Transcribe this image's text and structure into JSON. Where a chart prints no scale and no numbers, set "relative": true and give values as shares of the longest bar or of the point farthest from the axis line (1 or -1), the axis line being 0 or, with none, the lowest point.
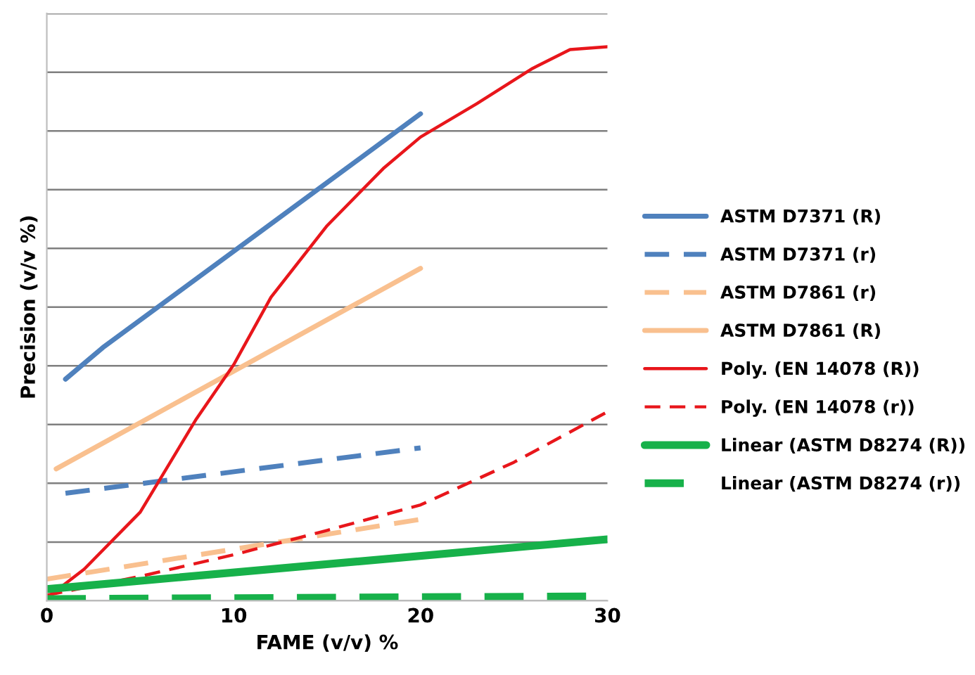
{
  "chart_data": {
    "type": "line",
    "relative": true,
    "xlabel": "FAME (v/v) %",
    "ylabel": "Precision (v/v %)",
    "xlim": [
      0,
      30
    ],
    "xticks": [
      0,
      10,
      20,
      30
    ],
    "grid": "y",
    "legend": "right",
    "tick_labels": "x",
    "series": [
      {
        "name": "ASTM D7371 (R)",
        "color": "#4f81bd",
        "line_style": "solid",
        "x": [
          1,
          3,
          20
        ],
        "values": [
          0.4,
          0.457,
          0.879
        ]
      },
      {
        "name": "ASTM D7371 (r)",
        "color": "#4f81bd",
        "line_style": "dashed",
        "x": [
          1,
          20
        ],
        "values": [
          0.194,
          0.276
        ]
      },
      {
        "name": "ASTM D7861 (r)",
        "color": "#f9c08f",
        "line_style": "dashed",
        "x": [
          0,
          20
        ],
        "values": [
          0.039,
          0.147
        ]
      },
      {
        "name": "ASTM D7861 (R)",
        "color": "#f9c08f",
        "line_style": "solid",
        "x": [
          0.5,
          20
        ],
        "values": [
          0.238,
          0.6
        ]
      },
      {
        "name": "Poly. (EN 14078 (R))",
        "color": "#e8161b",
        "line_style": "solid",
        "x": [
          0,
          2,
          5,
          8,
          10,
          12,
          15,
          18,
          20,
          23,
          26,
          28,
          30
        ],
        "values": [
          0.005,
          0.057,
          0.16,
          0.328,
          0.426,
          0.548,
          0.677,
          0.78,
          0.837,
          0.897,
          0.961,
          0.995,
          1
        ]
      },
      {
        "name": "Poly. (EN 14078 (r))",
        "color": "#e8161b",
        "line_style": "dashed",
        "x": [
          0,
          5,
          10,
          15,
          20,
          25,
          30
        ],
        "values": [
          0.01,
          0.044,
          0.083,
          0.127,
          0.173,
          0.25,
          0.341
        ]
      },
      {
        "name": "Linear (ASTM D8274 (R))",
        "color": "#17b14a",
        "line_style": "solid",
        "x": [
          0,
          30
        ],
        "values": [
          0.021,
          0.111
        ]
      },
      {
        "name": "Linear (ASTM D8274 (r))",
        "color": "#17b14a",
        "line_style": "dashed",
        "x": [
          0,
          30
        ],
        "values": [
          0.003,
          0.008
        ]
      }
    ]
  }
}
